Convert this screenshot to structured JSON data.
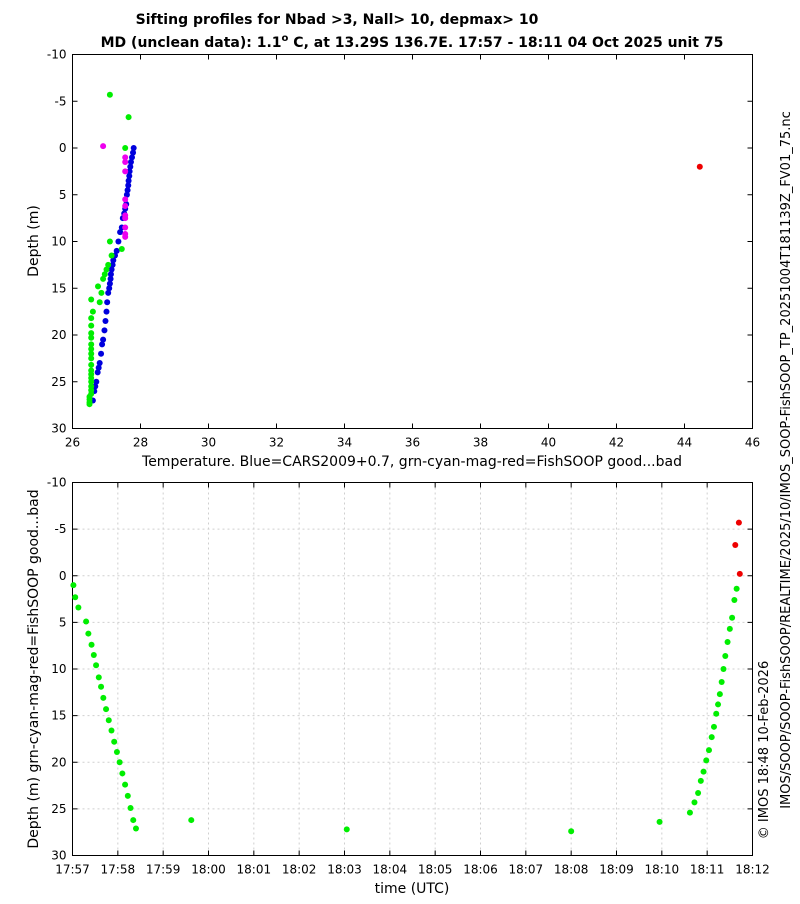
{
  "header": {
    "title_line1": "Sifting profiles for Nbad >3, Nall> 10, depmax> 10",
    "title_line2_prefix": "MD (unclean data): 1.1",
    "title_line2_degree": "o",
    "title_line2_suffix": " C, at 13.29S 136.7E. 17:57 - 18:11 04 Oct 2025 unit 75"
  },
  "side_labels": {
    "path": "IMOS/SOOP/SOOP-FishSOOP/REALTIME/2025/10/IMOS_SOOP-FishSOOP_TP_20251004T181139Z_FV01_75.nc",
    "credit": "© IMOS 18:48 10-Feb-2026"
  },
  "colors": {
    "blue": "#0000dd",
    "green": "#00ee00",
    "magenta": "#ee00ee",
    "red": "#ee0000"
  },
  "chart_data": [
    {
      "type": "scatter",
      "xlabel": "Temperature. Blue=CARS2009+0.7, grn-cyan-mag-red=FishSOOP good...bad",
      "ylabel": "Depth (m)",
      "xlim": [
        26,
        46
      ],
      "ylim": [
        -10,
        30
      ],
      "y_inverted": true,
      "grid": false,
      "x_ticks": [
        26,
        28,
        30,
        32,
        34,
        36,
        38,
        40,
        42,
        44,
        46
      ],
      "x_tick_labels": [
        "26",
        "28",
        "30",
        "32",
        "34",
        "36",
        "38",
        "40",
        "42",
        "44",
        "46"
      ],
      "y_ticks": [
        -10,
        -5,
        0,
        5,
        10,
        15,
        20,
        25,
        30
      ],
      "y_tick_labels": [
        "-10",
        "-5",
        "0",
        "5",
        "10",
        "15",
        "20",
        "25",
        "30"
      ],
      "series": [
        {
          "name": "CARS2009+0.7",
          "color": "blue",
          "x": [
            27.8,
            27.78,
            27.75,
            27.72,
            27.7,
            27.68,
            27.67,
            27.65,
            27.64,
            27.62,
            27.6,
            27.58,
            27.55,
            27.52,
            27.48,
            27.45,
            27.4,
            27.35,
            27.3,
            27.25,
            27.2,
            27.18,
            27.15,
            27.13,
            27.12,
            27.1,
            27.08,
            27.05,
            27.02,
            27.0,
            26.97,
            26.94,
            26.9,
            26.87,
            26.84,
            26.8,
            26.77,
            26.74,
            26.7,
            26.67,
            26.64,
            26.6
          ],
          "y": [
            0,
            0.5,
            1,
            1.5,
            2,
            2.5,
            3,
            3.5,
            4,
            4.5,
            5,
            6,
            6.5,
            7,
            7.5,
            8.5,
            9,
            10,
            11,
            11.5,
            12,
            12.5,
            13,
            13.5,
            14,
            14.5,
            15,
            15.5,
            16.5,
            17.5,
            18.5,
            19.5,
            20.5,
            21,
            22,
            23,
            23.5,
            24,
            25,
            25.5,
            26,
            27
          ]
        },
        {
          "name": "FishSOOP good",
          "color": "green",
          "x": [
            27.1,
            27.65,
            27.55,
            27.1,
            27.45,
            27.15,
            27.05,
            27.0,
            26.95,
            26.9,
            26.75,
            26.85,
            26.55,
            26.8,
            26.6,
            26.55,
            26.55,
            26.55,
            26.55,
            26.55,
            26.55,
            26.55,
            26.55,
            26.55,
            26.55,
            26.55,
            26.55,
            26.55,
            26.55,
            26.55,
            26.55,
            26.5,
            26.5,
            26.5,
            26.5
          ],
          "y": [
            -5.7,
            -3.3,
            0,
            10,
            10.8,
            11.5,
            12.5,
            13,
            13.5,
            14,
            14.8,
            15.5,
            16.2,
            16.5,
            17.5,
            18.2,
            19,
            19.8,
            20.3,
            21,
            21.5,
            22,
            22.5,
            23.2,
            23.8,
            24.2,
            24.6,
            25,
            25.5,
            25.9,
            26.3,
            26.6,
            26.9,
            27.2,
            27.4
          ]
        },
        {
          "name": "FishSOOP magenta",
          "color": "magenta",
          "x": [
            26.9,
            27.55,
            27.55,
            27.55,
            27.55,
            27.55,
            27.55,
            27.55,
            27.55,
            27.55,
            27.55
          ],
          "y": [
            -0.2,
            1,
            1.5,
            2.5,
            5.5,
            6.2,
            7.2,
            7.5,
            8.5,
            9.2,
            9.5
          ]
        },
        {
          "name": "FishSOOP bad",
          "color": "red",
          "x": [
            44.45
          ],
          "y": [
            2
          ]
        }
      ]
    },
    {
      "type": "scatter",
      "xlabel": "time (UTC)",
      "ylabel": "Depth (m) grn-cyan-mag-red=FishSOOP good...bad",
      "xlim": [
        0,
        15
      ],
      "ylim": [
        -10,
        30
      ],
      "y_inverted": true,
      "grid": true,
      "x_unit": "minutes since 17:57",
      "x_ticks": [
        0,
        1,
        2,
        3,
        4,
        5,
        6,
        7,
        8,
        9,
        10,
        11,
        12,
        13,
        14,
        15
      ],
      "x_tick_labels": [
        "17:57",
        "17:58",
        "17:59",
        "18:00",
        "18:01",
        "18:02",
        "18:03",
        "18:04",
        "18:05",
        "18:06",
        "18:07",
        "18:08",
        "18:09",
        "18:10",
        "18:11",
        "18:12"
      ],
      "y_ticks": [
        -10,
        -5,
        0,
        5,
        10,
        15,
        20,
        25,
        30
      ],
      "y_tick_labels": [
        "-10",
        "-5",
        "0",
        "5",
        "10",
        "15",
        "20",
        "25",
        "30"
      ],
      "series": [
        {
          "name": "FishSOOP good",
          "color": "green",
          "x": [
            0.02,
            0.06,
            0.13,
            0.3,
            0.35,
            0.42,
            0.47,
            0.52,
            0.58,
            0.63,
            0.68,
            0.74,
            0.8,
            0.86,
            0.92,
            0.98,
            1.04,
            1.1,
            1.16,
            1.22,
            1.28,
            1.34,
            1.4,
            2.62,
            6.05,
            11.0,
            12.95,
            13.62,
            13.72,
            13.8,
            13.86,
            13.92,
            13.98,
            14.04,
            14.1,
            14.15,
            14.2,
            14.24,
            14.28,
            14.32,
            14.36,
            14.4,
            14.45,
            14.5,
            14.55,
            14.6,
            14.65
          ],
          "y": [
            1,
            2.3,
            3.4,
            4.9,
            6.2,
            7.4,
            8.5,
            9.6,
            10.9,
            11.9,
            13.1,
            14.3,
            15.5,
            16.6,
            17.8,
            18.9,
            20,
            21.2,
            22.4,
            23.6,
            24.9,
            26.2,
            27.1,
            26.2,
            27.2,
            27.4,
            26.4,
            25.4,
            24.3,
            23.3,
            22,
            21,
            19.8,
            18.7,
            17.3,
            16.2,
            14.8,
            13.8,
            12.7,
            11.4,
            10,
            8.6,
            7.1,
            5.7,
            4.5,
            2.6,
            1.4
          ]
        },
        {
          "name": "FishSOOP bad",
          "color": "red",
          "x": [
            14.62,
            14.7,
            14.72
          ],
          "y": [
            -3.3,
            -5.7,
            -0.2
          ]
        }
      ]
    }
  ]
}
